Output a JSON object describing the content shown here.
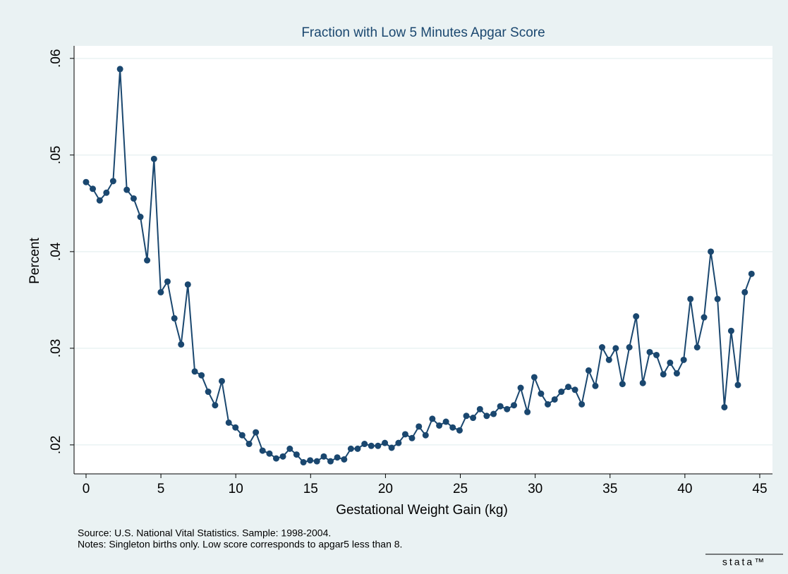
{
  "chart_data": {
    "type": "line",
    "title": "Fraction with Low 5 Minutes Apgar Score",
    "x_label": "Gestational Weight Gain (kg)",
    "y_label": "Percent",
    "notes": [
      "Source: U.S. National Vital Statistics. Sample: 1998-2004.",
      "Notes: Singleton births only. Low score corresponds to apgar5 less than 8."
    ],
    "logo": "stata™",
    "color": "#1a476f",
    "grid": true,
    "xlim": [
      -0.8,
      45.85
    ],
    "ylim": [
      0.017,
      0.0613
    ],
    "xticks": [
      0,
      5,
      10,
      15,
      20,
      25,
      30,
      35,
      40,
      45
    ],
    "yticks": [
      {
        "value": 0.02,
        "label": ".02"
      },
      {
        "value": 0.03,
        "label": ".03"
      },
      {
        "value": 0.04,
        "label": ".04"
      },
      {
        "value": 0.05,
        "label": ".05"
      },
      {
        "value": 0.06,
        "label": ".06"
      }
    ],
    "x": [
      0,
      0.45,
      0.91,
      1.36,
      1.81,
      2.27,
      2.72,
      3.18,
      3.63,
      4.08,
      4.54,
      4.99,
      5.44,
      5.9,
      6.35,
      6.8,
      7.26,
      7.71,
      8.16,
      8.62,
      9.07,
      9.53,
      9.98,
      10.43,
      10.89,
      11.34,
      11.79,
      12.25,
      12.7,
      13.15,
      13.61,
      14.06,
      14.52,
      14.97,
      15.42,
      15.88,
      16.33,
      16.78,
      17.24,
      17.69,
      18.14,
      18.6,
      19.05,
      19.5,
      19.96,
      20.41,
      20.87,
      21.32,
      21.77,
      22.23,
      22.68,
      23.13,
      23.59,
      24.04,
      24.49,
      24.95,
      25.4,
      25.85,
      26.31,
      26.76,
      27.22,
      27.67,
      28.12,
      28.58,
      29.03,
      29.48,
      29.94,
      30.39,
      30.84,
      31.3,
      31.75,
      32.21,
      32.66,
      33.11,
      33.57,
      34.02,
      34.47,
      34.93,
      35.38,
      35.83,
      36.29,
      36.74,
      37.19,
      37.65,
      38.1,
      38.56,
      39.01,
      39.46,
      39.92,
      40.37,
      40.82,
      41.28,
      41.73,
      42.18,
      42.64,
      43.09,
      43.54,
      44.0,
      44.45
    ],
    "values": [
      0.0472,
      0.0465,
      0.0453,
      0.0461,
      0.0473,
      0.0589,
      0.0464,
      0.0455,
      0.0436,
      0.0391,
      0.0496,
      0.0358,
      0.0369,
      0.0331,
      0.0304,
      0.0366,
      0.0276,
      0.0272,
      0.0255,
      0.0241,
      0.0266,
      0.0223,
      0.0218,
      0.021,
      0.0201,
      0.0213,
      0.0194,
      0.0191,
      0.0186,
      0.0188,
      0.0196,
      0.019,
      0.0182,
      0.0184,
      0.0183,
      0.0188,
      0.0183,
      0.0187,
      0.0185,
      0.0196,
      0.0196,
      0.0201,
      0.0199,
      0.0199,
      0.0202,
      0.0197,
      0.0202,
      0.0211,
      0.0207,
      0.0219,
      0.021,
      0.0227,
      0.022,
      0.0224,
      0.0218,
      0.0215,
      0.023,
      0.0228,
      0.0237,
      0.023,
      0.0232,
      0.024,
      0.0237,
      0.0241,
      0.0259,
      0.0234,
      0.027,
      0.0253,
      0.0242,
      0.0247,
      0.0255,
      0.026,
      0.0257,
      0.0242,
      0.0277,
      0.0261,
      0.0301,
      0.0288,
      0.03,
      0.0263,
      0.0301,
      0.0333,
      0.0264,
      0.0296,
      0.0293,
      0.0273,
      0.0285,
      0.0274,
      0.0288,
      0.0351,
      0.0301,
      0.0332,
      0.04,
      0.0351,
      0.0239,
      0.0318,
      0.0262,
      0.0358,
      0.0377
    ]
  }
}
